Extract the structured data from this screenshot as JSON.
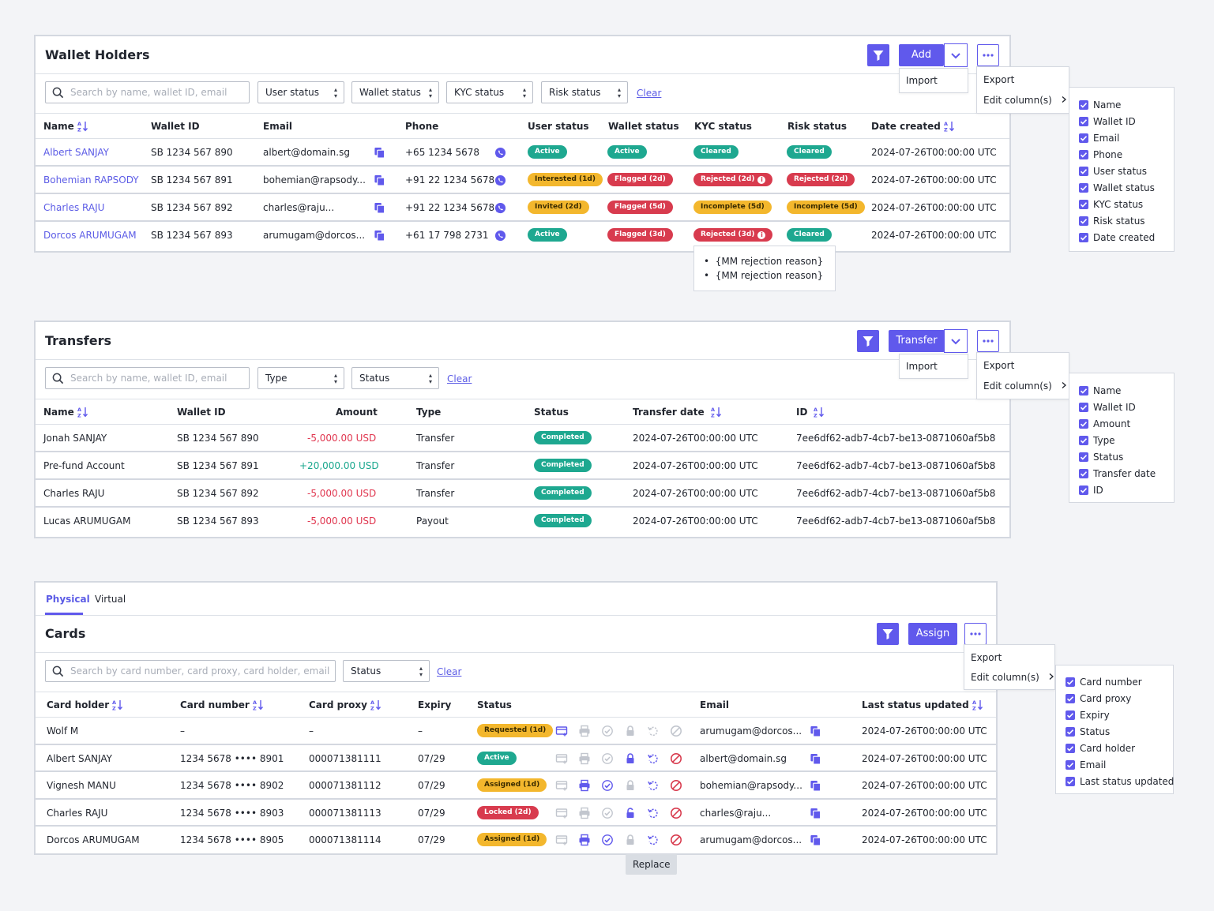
{
  "wallet": {
    "title": "Wallet Holders",
    "add_label": "Add",
    "add_menu": [
      "Import"
    ],
    "more_menu": [
      "Export",
      "Edit column(s)"
    ],
    "search_placeholder": "Search by name, wallet ID, email",
    "filters": [
      "User status",
      "Wallet status",
      "KYC status",
      "Risk status"
    ],
    "clear_label": "Clear",
    "columns": [
      "Name",
      "Wallet ID",
      "Email",
      "Phone",
      "User status",
      "Wallet status",
      "KYC status",
      "Risk status",
      "Date created"
    ],
    "rows": [
      {
        "name": "Albert SANJAY",
        "wallet_id": "SB 1234 567 890",
        "email": "albert@domain.sg",
        "phone": "+65 1234 5678",
        "user_status": "Active",
        "wallet_status": "Active",
        "kyc_status": "Cleared",
        "risk_status": "Cleared",
        "date": "2024-07-26T00:00:00 UTC"
      },
      {
        "name": "Bohemian RAPSODY",
        "wallet_id": "SB 1234 567 891",
        "email": "bohemian@rapsody...",
        "phone": "+91 22 1234 5678",
        "user_status": "Interested (1d)",
        "wallet_status": "Flagged (2d)",
        "kyc_status": "Rejected (2d)",
        "risk_status": "Rejected (2d)",
        "date": "2024-07-26T00:00:00 UTC"
      },
      {
        "name": "Charles RAJU",
        "wallet_id": "SB 1234 567 892",
        "email": "charles@raju...",
        "phone": "+91 22 1234 5678",
        "user_status": "Invited (2d)",
        "wallet_status": "Flagged (5d)",
        "kyc_status": "Incomplete (5d)",
        "risk_status": "Incomplete (5d)",
        "date": "2024-07-26T00:00:00 UTC"
      },
      {
        "name": "Dorcos ARUMUGAM",
        "wallet_id": "SB 1234 567 893",
        "email": "arumugam@dorcos...",
        "phone": "+61 17 798 2731",
        "user_status": "Active",
        "wallet_status": "Flagged (3d)",
        "kyc_status": "Rejected (3d)",
        "risk_status": "Cleared",
        "date": "2024-07-26T00:00:00 UTC"
      }
    ],
    "tooltip": [
      "{MM rejection reason}",
      "{MM rejection reason}"
    ],
    "column_options": [
      "Name",
      "Wallet ID",
      "Email",
      "Phone",
      "User status",
      "Wallet status",
      "KYC status",
      "Risk status",
      "Date created"
    ]
  },
  "transfers": {
    "title": "Transfers",
    "transfer_label": "Transfer",
    "add_menu": [
      "Import"
    ],
    "more_menu": [
      "Export",
      "Edit column(s)"
    ],
    "search_placeholder": "Search by name, wallet ID, email",
    "filters": [
      "Type",
      "Status"
    ],
    "clear_label": "Clear",
    "columns": [
      "Name",
      "Wallet ID",
      "Amount",
      "Type",
      "Status",
      "Transfer date",
      "ID"
    ],
    "rows": [
      {
        "name": "Jonah SANJAY",
        "wallet_id": "SB 1234 567 890",
        "amount": "-5,000.00 USD",
        "type": "Transfer",
        "status": "Completed",
        "date": "2024-07-26T00:00:00 UTC",
        "id": "7ee6df62-adb7-4cb7-be13-0871060af5b8"
      },
      {
        "name": "Pre-fund Account",
        "wallet_id": "SB 1234 567 891",
        "amount": "+20,000.00 USD",
        "type": "Transfer",
        "status": "Completed",
        "date": "2024-07-26T00:00:00 UTC",
        "id": "7ee6df62-adb7-4cb7-be13-0871060af5b8"
      },
      {
        "name": "Charles RAJU",
        "wallet_id": "SB 1234 567 892",
        "amount": "-5,000.00 USD",
        "type": "Transfer",
        "status": "Completed",
        "date": "2024-07-26T00:00:00 UTC",
        "id": "7ee6df62-adb7-4cb7-be13-0871060af5b8"
      },
      {
        "name": "Lucas ARUMUGAM",
        "wallet_id": "SB 1234 567 893",
        "amount": "-5,000.00 USD",
        "type": "Payout",
        "status": "Completed",
        "date": "2024-07-26T00:00:00 UTC",
        "id": "7ee6df62-adb7-4cb7-be13-0871060af5b8"
      }
    ],
    "column_options": [
      "Name",
      "Wallet ID",
      "Amount",
      "Type",
      "Status",
      "Transfer date",
      "ID"
    ]
  },
  "cards": {
    "tabs": [
      "Physical",
      "Virtual"
    ],
    "title": "Cards",
    "assign_label": "Assign",
    "more_menu": [
      "Export",
      "Edit column(s)"
    ],
    "search_placeholder": "Search by card number, card proxy, card holder, email",
    "filters": [
      "Status"
    ],
    "clear_label": "Clear",
    "columns": [
      "Card holder",
      "Card number",
      "Card proxy",
      "Expiry",
      "Status",
      "Email",
      "Last status updated"
    ],
    "rows": [
      {
        "holder": "Wolf M",
        "number": "–",
        "proxy": "–",
        "expiry": "–",
        "status": "Requested (1d)",
        "email": "arumugam@dorcos...",
        "updated": "2024-07-26T00:00:00 UTC"
      },
      {
        "holder": "Albert SANJAY",
        "number": "1234 5678 •••• 8901",
        "proxy": "000071381111",
        "expiry": "07/29",
        "status": "Active",
        "email": "albert@domain.sg",
        "updated": "2024-07-26T00:00:00 UTC"
      },
      {
        "holder": "Vignesh MANU",
        "number": "1234 5678 •••• 8902",
        "proxy": "000071381112",
        "expiry": "07/29",
        "status": "Assigned (1d)",
        "email": "bohemian@rapsody...",
        "updated": "2024-07-26T00:00:00 UTC"
      },
      {
        "holder": "Charles RAJU",
        "number": "1234 5678 •••• 8903",
        "proxy": "000071381113",
        "expiry": "07/29",
        "status": "Locked (2d)",
        "email": "charles@raju...",
        "updated": "2024-07-26T00:00:00 UTC"
      },
      {
        "holder": "Dorcos ARUMUGAM",
        "number": "1234 5678 •••• 8905",
        "proxy": "000071381114",
        "expiry": "07/29",
        "status": "Assigned (1d)",
        "email": "arumugam@dorcos...",
        "updated": "2024-07-26T00:00:00 UTC"
      }
    ],
    "replace_tooltip": "Replace",
    "column_options": [
      "Card number",
      "Card proxy",
      "Expiry",
      "Status",
      "Card holder",
      "Email",
      "Last status updated"
    ]
  },
  "colors": {
    "accent": "#6059ec",
    "green": "#1ea890",
    "red": "#d83b4e",
    "yellow": "#f3b72d"
  }
}
